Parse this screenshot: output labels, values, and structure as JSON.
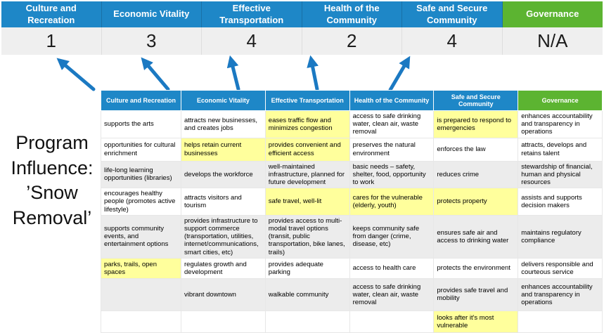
{
  "colors": {
    "header_blue": "#1e87c7",
    "header_green": "#5cb431",
    "score_bg": "#efefef",
    "row_gray": "#ececec",
    "highlight_yellow": "#ffff9c",
    "arrow_blue": "#1b79c2"
  },
  "title": {
    "text": "Program Influence: ’Snow Removal’"
  },
  "summary": {
    "columns": [
      {
        "label": "Culture and Recreation",
        "score": "1",
        "theme": "blue"
      },
      {
        "label": "Economic Vitality",
        "score": "3",
        "theme": "blue"
      },
      {
        "label": "Effective Transportation",
        "score": "4",
        "theme": "blue"
      },
      {
        "label": "Health of the Community",
        "score": "2",
        "theme": "blue"
      },
      {
        "label": "Safe and Secure Community",
        "score": "4",
        "theme": "blue"
      },
      {
        "label": "Governance",
        "score": "N/A",
        "theme": "green"
      }
    ]
  },
  "matrix": {
    "headers": [
      {
        "label": "Culture and Recreation",
        "theme": "blue"
      },
      {
        "label": "Economic Vitality",
        "theme": "blue"
      },
      {
        "label": "Effective Transportation",
        "theme": "blue"
      },
      {
        "label": "Health of the Community",
        "theme": "blue"
      },
      {
        "label": "Safe and Secure Community",
        "theme": "blue"
      },
      {
        "label": "Governance",
        "theme": "green"
      }
    ],
    "rows": [
      {
        "shade": "white",
        "cells": [
          {
            "text": "supports the arts",
            "highlight": false
          },
          {
            "text": "attracts new businesses, and creates jobs",
            "highlight": false
          },
          {
            "text": "eases traffic flow and minimizes congestion",
            "highlight": true
          },
          {
            "text": "access to safe drinking water, clean air, waste removal",
            "highlight": false
          },
          {
            "text": "is prepared to respond to emergencies",
            "highlight": true
          },
          {
            "text": "enhances accountability and transparency in operations",
            "highlight": false
          }
        ]
      },
      {
        "shade": "white",
        "cells": [
          {
            "text": "opportunities for cultural enrichment",
            "highlight": false
          },
          {
            "text": "helps retain current businesses",
            "highlight": true
          },
          {
            "text": "provides convenient and efficient access",
            "highlight": true
          },
          {
            "text": "preserves the natural environment",
            "highlight": false
          },
          {
            "text": "enforces the law",
            "highlight": false
          },
          {
            "text": "attracts, develops and retains talent",
            "highlight": false
          }
        ]
      },
      {
        "shade": "gray",
        "cells": [
          {
            "text": "life-long learning opportunities (libraries)",
            "highlight": false
          },
          {
            "text": "develops the workforce",
            "highlight": false
          },
          {
            "text": "well-maintained infrastructure, planned for future development",
            "highlight": false
          },
          {
            "text": "basic needs – safety, shelter, food, opportunity to work",
            "highlight": true
          },
          {
            "text": "reduces crime",
            "highlight": false
          },
          {
            "text": "stewardship of financial, human and physical resources",
            "highlight": false
          }
        ]
      },
      {
        "shade": "white",
        "cells": [
          {
            "text": "encourages healthy people (promotes active lifestyle)",
            "highlight": false
          },
          {
            "text": "attracts visitors and tourism",
            "highlight": false
          },
          {
            "text": "safe travel, well-lit",
            "highlight": true
          },
          {
            "text": "cares for the vulnerable (elderly, youth)",
            "highlight": true
          },
          {
            "text": "protects property",
            "highlight": true
          },
          {
            "text": "assists and supports decision makers",
            "highlight": false
          }
        ]
      },
      {
        "shade": "gray",
        "cells": [
          {
            "text": "supports community events, and entertainment options",
            "highlight": false
          },
          {
            "text": "provides infrastructure to support commerce (transportation, utilities, internet/communications, smart cities, etc)",
            "highlight": true
          },
          {
            "text": "provides access to multi-modal travel options (transit, public transportation, bike lanes, trails)",
            "highlight": true
          },
          {
            "text": "keeps community safe from danger (crime, disease, etc)",
            "highlight": true
          },
          {
            "text": "ensures safe air and access to drinking water",
            "highlight": false
          },
          {
            "text": "maintains regulatory compliance",
            "highlight": false
          }
        ]
      },
      {
        "shade": "white",
        "cells": [
          {
            "text": "parks, trails, open spaces",
            "highlight": true
          },
          {
            "text": "regulates growth and development",
            "highlight": false
          },
          {
            "text": "provides adequate parking",
            "highlight": false
          },
          {
            "text": "access to health care",
            "highlight": false
          },
          {
            "text": "protects the environment",
            "highlight": false
          },
          {
            "text": "delivers responsible and courteous service",
            "highlight": false
          }
        ]
      },
      {
        "shade": "gray",
        "cells": [
          {
            "text": "",
            "highlight": false
          },
          {
            "text": "vibrant downtown",
            "highlight": false
          },
          {
            "text": "walkable community",
            "highlight": false
          },
          {
            "text": "access to safe drinking water, clean air, waste removal",
            "highlight": false
          },
          {
            "text": "provides safe travel and mobility",
            "highlight": true
          },
          {
            "text": "enhances accountability and transparency in operations",
            "highlight": false
          }
        ]
      },
      {
        "shade": "white",
        "cells": [
          {
            "text": "",
            "highlight": false
          },
          {
            "text": "",
            "highlight": false
          },
          {
            "text": "",
            "highlight": false
          },
          {
            "text": "",
            "highlight": false
          },
          {
            "text": "looks after it's most vulnerable",
            "highlight": true
          },
          {
            "text": "",
            "highlight": false
          }
        ]
      }
    ]
  }
}
